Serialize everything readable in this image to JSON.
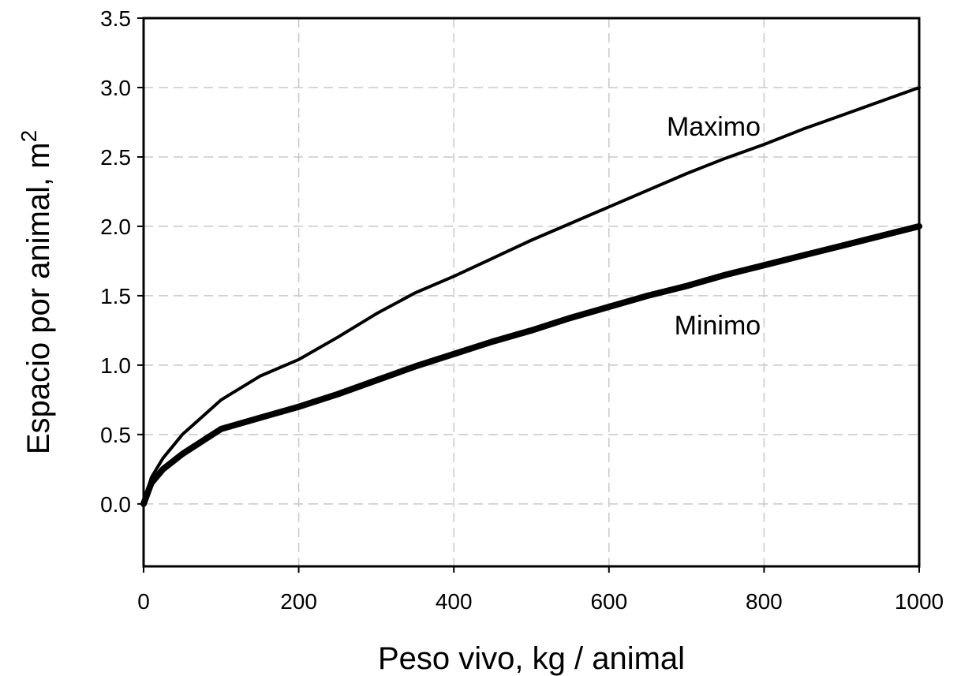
{
  "chart_data": {
    "type": "line",
    "title": "",
    "xlabel": "Peso vivo, kg / animal",
    "ylabel": "Espacio por animal, m",
    "ylabel_superscript": "2",
    "xlim": [
      0,
      1000
    ],
    "ylim": [
      -0.45,
      3.5
    ],
    "xticks": [
      0,
      200,
      400,
      600,
      800,
      1000
    ],
    "xtick_labels": [
      "0",
      "200",
      "400",
      "600",
      "800",
      "1000"
    ],
    "yticks": [
      0,
      0.5,
      1.0,
      1.5,
      2.0,
      2.5,
      3.0,
      3.5
    ],
    "ytick_labels": [
      "0.0",
      "0.5",
      "1.0",
      "1.5",
      "2.0",
      "2.5",
      "3.0",
      "3.5"
    ],
    "grid": true,
    "legend": "none",
    "series": [
      {
        "name": "Maximo",
        "color": "#000000",
        "line": "thin",
        "x": [
          0,
          10,
          25,
          50,
          100,
          150,
          200,
          250,
          300,
          350,
          400,
          450,
          500,
          550,
          600,
          650,
          700,
          750,
          800,
          850,
          900,
          950,
          1000
        ],
        "y": [
          0,
          0.19,
          0.33,
          0.5,
          0.75,
          0.92,
          1.04,
          1.2,
          1.37,
          1.52,
          1.64,
          1.77,
          1.9,
          2.02,
          2.14,
          2.26,
          2.38,
          2.49,
          2.59,
          2.7,
          2.8,
          2.9,
          3.0
        ]
      },
      {
        "name": "Minimo",
        "color": "#000000",
        "line": "thick",
        "x": [
          0,
          10,
          25,
          50,
          100,
          150,
          200,
          250,
          300,
          350,
          400,
          450,
          500,
          550,
          600,
          650,
          700,
          750,
          800,
          850,
          900,
          950,
          1000
        ],
        "y": [
          0,
          0.15,
          0.25,
          0.36,
          0.54,
          0.62,
          0.7,
          0.79,
          0.89,
          0.99,
          1.08,
          1.17,
          1.25,
          1.34,
          1.42,
          1.5,
          1.57,
          1.65,
          1.72,
          1.79,
          1.86,
          1.93,
          2.0
        ]
      }
    ],
    "annotations": [
      {
        "text": "Maximo",
        "x": 735,
        "y": 2.72
      },
      {
        "text": "Minimo",
        "x": 740,
        "y": 1.29
      }
    ]
  }
}
